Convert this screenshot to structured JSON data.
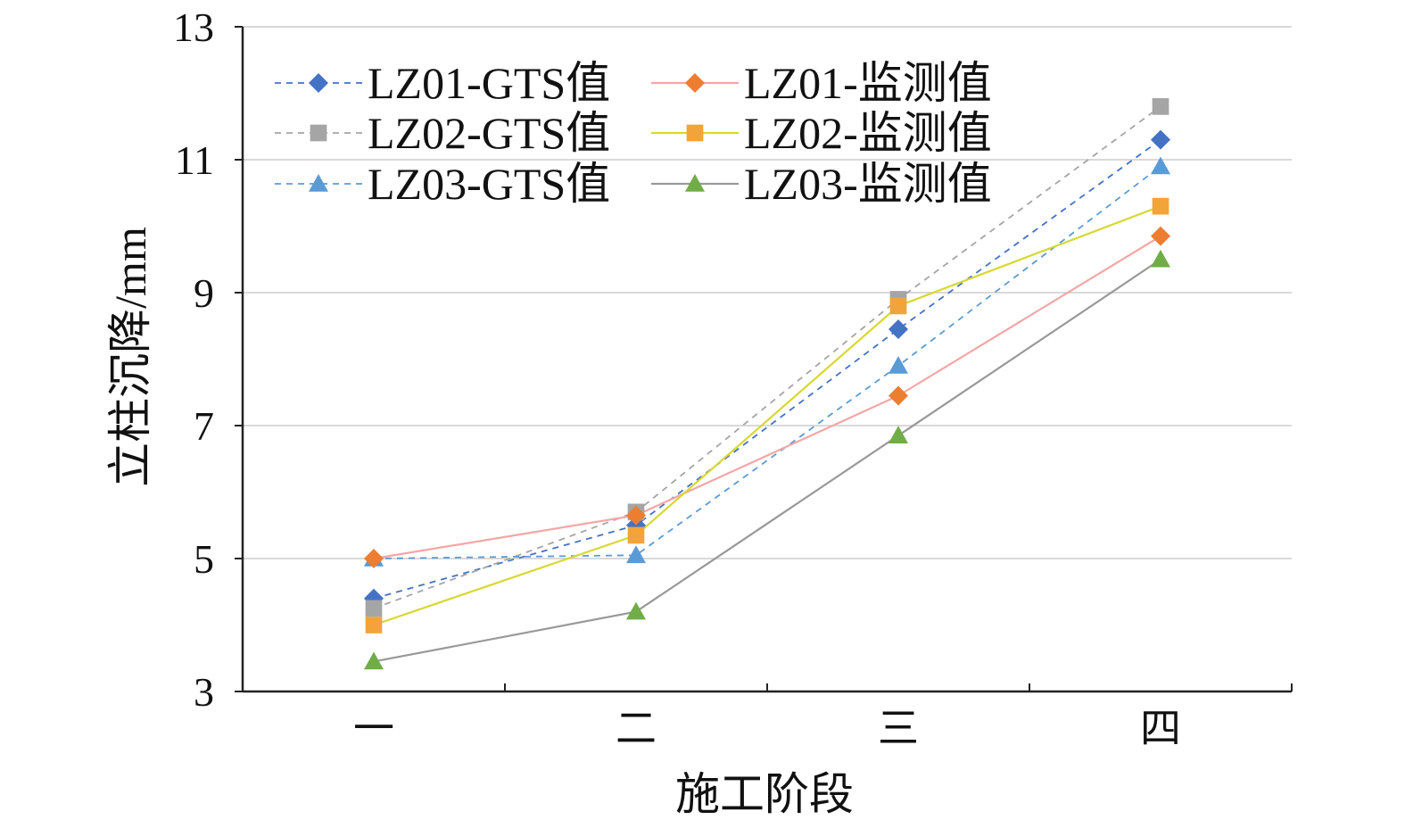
{
  "chart_data": {
    "type": "line",
    "xlabel": "施工阶段",
    "ylabel": "立柱沉降/mm",
    "categories": [
      "一",
      "二",
      "三",
      "四"
    ],
    "ylim": [
      3,
      13
    ],
    "yticks": [
      3,
      5,
      7,
      9,
      11,
      13
    ],
    "grid": true,
    "legend_position": "top-left",
    "series": [
      {
        "name": "LZ01-GTS值",
        "values": [
          4.4,
          5.5,
          8.45,
          11.3
        ],
        "color": "#4472c4",
        "marker": "diamond",
        "dashed": true
      },
      {
        "name": "LZ01-监测值",
        "values": [
          5.0,
          5.65,
          7.45,
          9.85
        ],
        "color": "#ed7d31",
        "line_color": "#f4a6a6",
        "marker": "diamond",
        "dashed": false
      },
      {
        "name": "LZ02-GTS值",
        "values": [
          4.25,
          5.7,
          8.9,
          11.8
        ],
        "color": "#a5a5a5",
        "marker": "square",
        "dashed": true
      },
      {
        "name": "LZ02-监测值",
        "values": [
          4.0,
          5.35,
          8.8,
          10.3
        ],
        "color": "#f2a43a",
        "line_color": "#d8d830",
        "marker": "square",
        "dashed": false
      },
      {
        "name": "LZ03-GTS值",
        "values": [
          5.0,
          5.05,
          7.9,
          10.9
        ],
        "color": "#5b9bd5",
        "marker": "triangle",
        "dashed": true
      },
      {
        "name": "LZ03-监测值",
        "values": [
          3.45,
          4.2,
          6.85,
          9.5
        ],
        "color": "#70ad47",
        "line_color": "#999999",
        "marker": "triangle",
        "dashed": false
      }
    ]
  }
}
